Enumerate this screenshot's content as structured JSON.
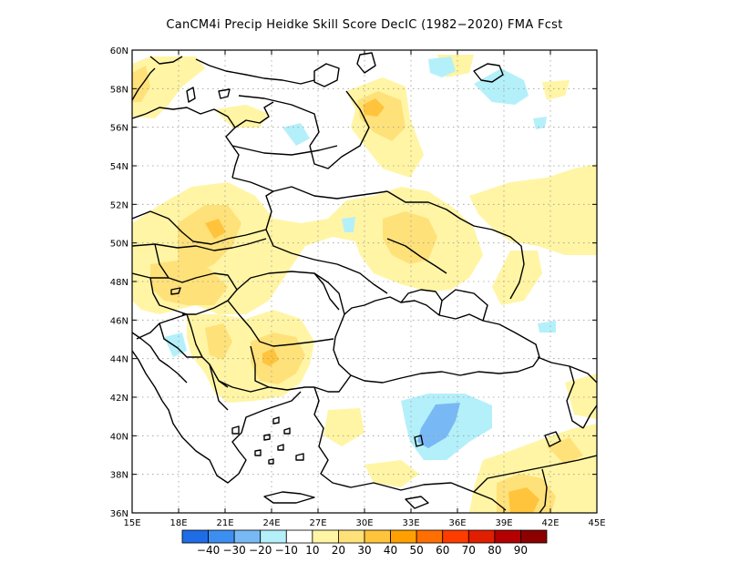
{
  "title": "CanCM4i Precip Heidke Skill Score DecIC (1982−2020) FMA Fcst",
  "lon_labels": [
    "15E",
    "18E",
    "21E",
    "24E",
    "27E",
    "30E",
    "33E",
    "36E",
    "39E",
    "42E",
    "45E"
  ],
  "lat_labels": [
    "36N",
    "38N",
    "40N",
    "42N",
    "44N",
    "46N",
    "48N",
    "50N",
    "52N",
    "54N",
    "56N",
    "58N",
    "60N"
  ],
  "colorbar": {
    "colors": [
      "#1e6de6",
      "#3c8ff0",
      "#78b9f5",
      "#b4f0fa",
      "#ffffff",
      "#fff5a5",
      "#ffe17a",
      "#ffc43c",
      "#ffa000",
      "#ff6e00",
      "#ff3c00",
      "#e11e00",
      "#b40000",
      "#8c0000"
    ],
    "labels": [
      "−40",
      "−30",
      "−20",
      "−10",
      "10",
      "20",
      "30",
      "40",
      "50",
      "60",
      "70",
      "80",
      "90"
    ]
  },
  "palette": {
    "y1": "#fff5a5",
    "y2": "#ffe17a",
    "y3": "#ffc43c",
    "y4": "#ffa000",
    "b1": "#b4f0fa",
    "b2": "#78b9f5"
  }
}
